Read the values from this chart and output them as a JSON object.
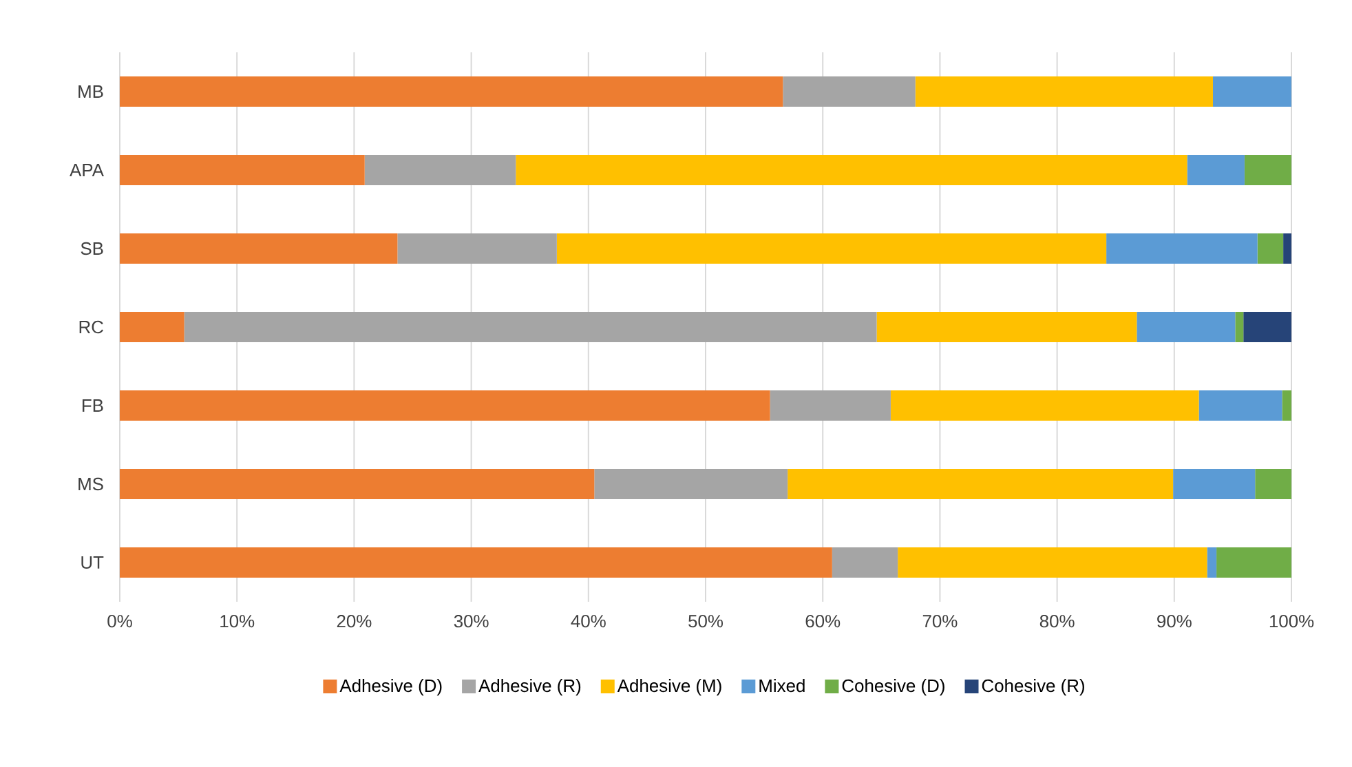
{
  "chart_data": {
    "type": "bar",
    "orientation": "horizontal",
    "stacked": true,
    "categories": [
      "MB",
      "APA",
      "SB",
      "RC",
      "FB",
      "MS",
      "UT"
    ],
    "series": [
      {
        "name": "Adhesive (D)",
        "color": "#ed7d31",
        "values": [
          56.6,
          20.9,
          23.7,
          5.5,
          55.5,
          40.5,
          60.8
        ]
      },
      {
        "name": "Adhesive (R)",
        "color": "#a5a5a5",
        "values": [
          11.3,
          12.9,
          13.6,
          59.1,
          10.3,
          16.5,
          5.6
        ]
      },
      {
        "name": "Adhesive (M)",
        "color": "#ffc000",
        "values": [
          25.4,
          57.3,
          46.9,
          22.2,
          26.3,
          32.9,
          26.4
        ]
      },
      {
        "name": "Mixed",
        "color": "#5b9bd5",
        "values": [
          6.7,
          4.9,
          12.9,
          8.4,
          7.1,
          7.0,
          0.8
        ]
      },
      {
        "name": "Cohesive (D)",
        "color": "#70ad47",
        "values": [
          0,
          4.0,
          2.2,
          0.7,
          0.8,
          3.1,
          6.4
        ]
      },
      {
        "name": "Cohesive (R)",
        "color": "#264478",
        "values": [
          0,
          0,
          0.7,
          4.1,
          0,
          0,
          0
        ]
      }
    ],
    "xlim": [
      0,
      100
    ],
    "xticks": [
      {
        "value": 0,
        "label": "0%"
      },
      {
        "value": 10,
        "label": "10%"
      },
      {
        "value": 20,
        "label": "20%"
      },
      {
        "value": 30,
        "label": "30%"
      },
      {
        "value": 40,
        "label": "40%"
      },
      {
        "value": 50,
        "label": "50%"
      },
      {
        "value": 60,
        "label": "60%"
      },
      {
        "value": 70,
        "label": "70%"
      },
      {
        "value": 80,
        "label": "80%"
      },
      {
        "value": 90,
        "label": "90%"
      },
      {
        "value": 100,
        "label": "100%"
      }
    ],
    "grid": "x",
    "legend": "bottom"
  }
}
